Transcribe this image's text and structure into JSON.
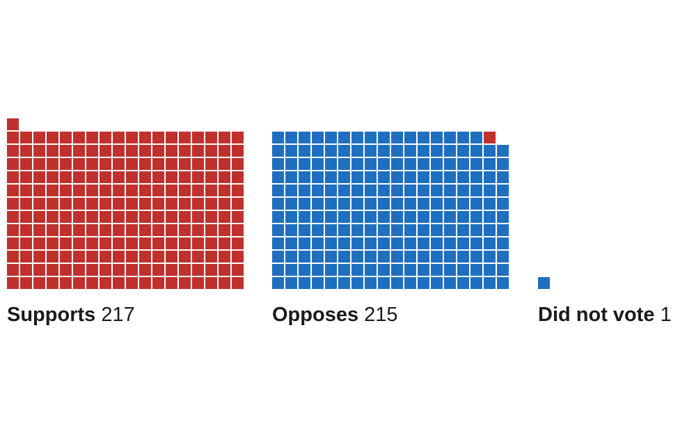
{
  "chart_data": {
    "type": "waffle",
    "title": "",
    "categories": [
      "Supports",
      "Opposes",
      "Did not vote"
    ],
    "values": [
      217,
      215,
      1
    ],
    "groups": [
      {
        "name": "Supports",
        "count_label": "217",
        "cells": [
          {
            "color": "#c0302d",
            "count": 217
          }
        ]
      },
      {
        "name": "Opposes",
        "count_label": "215",
        "cells": [
          {
            "color": "#1f6fc0",
            "count": 214
          },
          {
            "color": "#c0302d",
            "count": 1
          }
        ]
      },
      {
        "name": "Did not vote",
        "count_label": "1",
        "cells": [
          {
            "color": "#1f6fc0",
            "count": 1
          }
        ]
      }
    ],
    "colors": {
      "red": "#c0302d",
      "blue": "#1f6fc0"
    }
  }
}
